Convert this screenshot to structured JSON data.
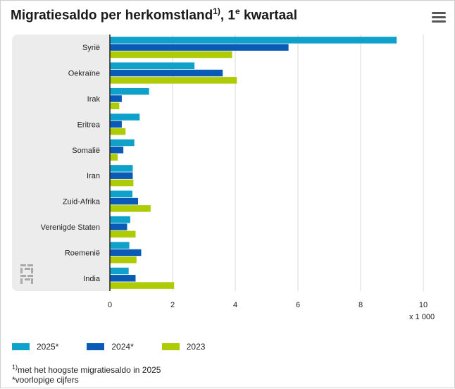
{
  "header": {
    "title": "Migratiesaldo per herkomstland",
    "title_note": "1)",
    "title_suffix_pre": ", 1",
    "title_suffix_sup": "e",
    "title_suffix_post": " kwartaal"
  },
  "colors": {
    "series_2025": "#0ea1c9",
    "series_2024": "#0a5bb5",
    "series_2023": "#afcb05",
    "plot_band": "#ececec",
    "grid": "#d8d8d8",
    "axis": "#222222"
  },
  "chart_data": {
    "type": "bar",
    "orientation": "horizontal",
    "title": "Migratiesaldo per herkomstland 1), 1e kwartaal",
    "xlabel": "x 1 000",
    "xlim": [
      0,
      10
    ],
    "xticks": [
      0,
      2,
      4,
      6,
      8,
      10
    ],
    "grid": true,
    "legend_position": "bottom-left",
    "categories": [
      "Syrië",
      "Oekraïne",
      "Irak",
      "Eritrea",
      "Somalië",
      "Iran",
      "Zuid-Afrika",
      "Verenigde Staten",
      "Roemenië",
      "India"
    ],
    "series": [
      {
        "name": "2025*",
        "color": "#0ea1c9",
        "values": [
          9.15,
          2.7,
          1.25,
          0.95,
          0.78,
          0.73,
          0.72,
          0.65,
          0.62,
          0.6
        ]
      },
      {
        "name": "2024*",
        "color": "#0a5bb5",
        "values": [
          5.7,
          3.6,
          0.38,
          0.38,
          0.43,
          0.73,
          0.9,
          0.55,
          1.0,
          0.82
        ]
      },
      {
        "name": "2023",
        "color": "#afcb05",
        "values": [
          3.9,
          4.05,
          0.3,
          0.5,
          0.25,
          0.75,
          1.3,
          0.82,
          0.85,
          2.05
        ]
      }
    ]
  },
  "footnotes": {
    "note1_marker": "1)",
    "note1_text": "met het hoogste migratiesaldo in 2025",
    "note2_text": "*voorlopige cijfers"
  },
  "logo": {
    "text": "cbs"
  }
}
